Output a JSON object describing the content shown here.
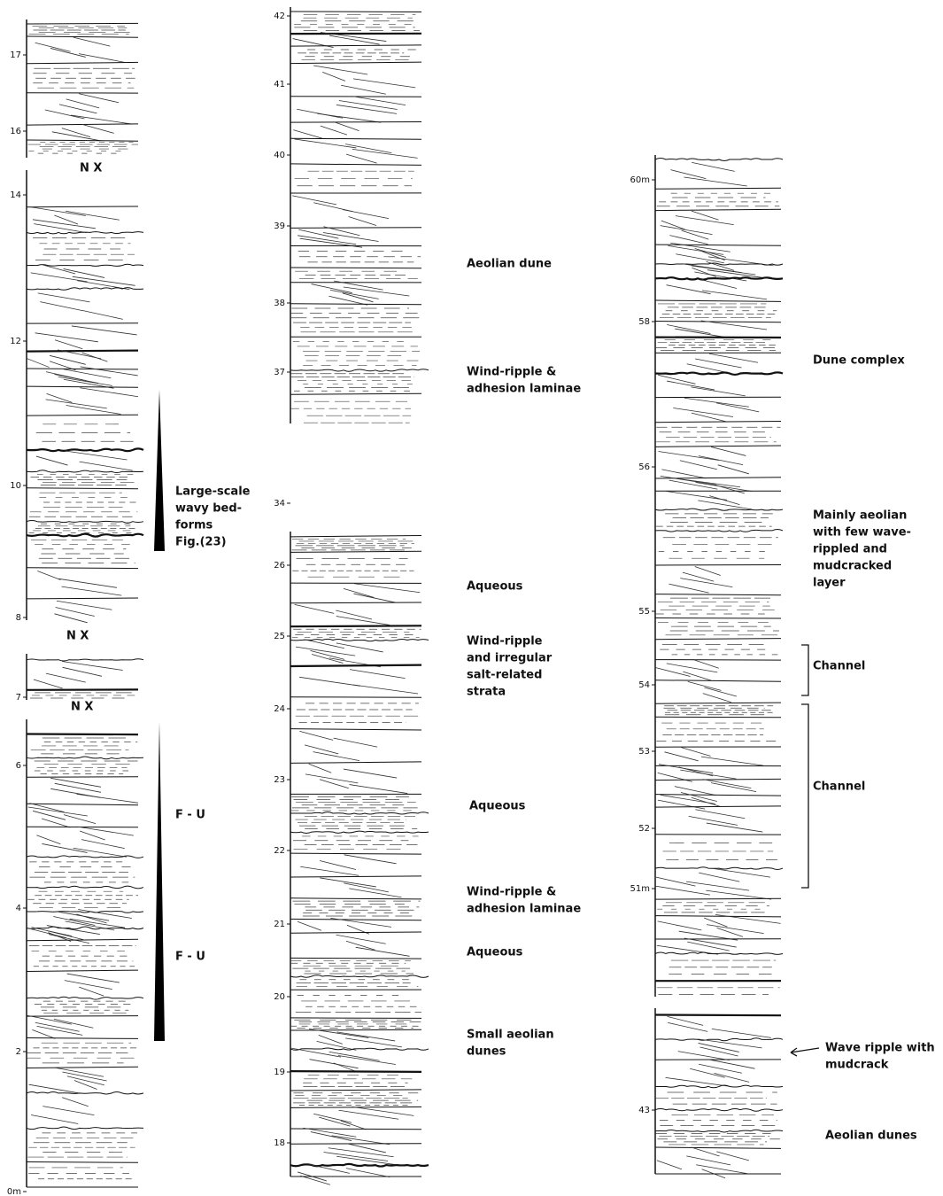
{
  "columns": [
    {
      "ticks": [
        "17",
        "16",
        "14",
        "12",
        "10",
        "8",
        "7",
        "6",
        "4",
        "2",
        "0m"
      ],
      "notes": [
        [
          "N X"
        ],
        [
          "N X"
        ],
        [
          "N X"
        ],
        [
          "Large-scale",
          "wavy bed-",
          "forms",
          "Fig.(23)"
        ],
        [
          "F - U"
        ],
        [
          "F - U"
        ]
      ]
    },
    {
      "ticks": [
        "42",
        "41",
        "40",
        "39",
        "38",
        "37",
        "34",
        "26",
        "25",
        "24",
        "23",
        "22",
        "21",
        "20",
        "19",
        "18"
      ],
      "notes": [
        [
          "Aeolian dune"
        ],
        [
          "Wind-ripple &",
          "adhesion laminae"
        ],
        [
          "Aqueous"
        ],
        [
          "Wind-ripple",
          "and irregular",
          "salt-related",
          "strata"
        ],
        [
          "Aqueous"
        ],
        [
          "Wind-ripple  &",
          "adhesion laminae"
        ],
        [
          "Aqueous"
        ],
        [
          "Small aeolian",
          "dunes"
        ]
      ]
    },
    {
      "ticks": [
        "60m",
        "58",
        "56",
        "55",
        "54",
        "53",
        "52",
        "51m",
        "43"
      ],
      "notes": [
        [
          "Dune complex"
        ],
        [
          "Mainly aeolian",
          "with few wave-",
          "rippled and",
          "mudcracked",
          "layer"
        ],
        [
          "Channel"
        ],
        [
          "Channel"
        ],
        [
          "Wave ripple with",
          "mudcrack"
        ],
        [
          "Aeolian dunes"
        ]
      ]
    }
  ]
}
